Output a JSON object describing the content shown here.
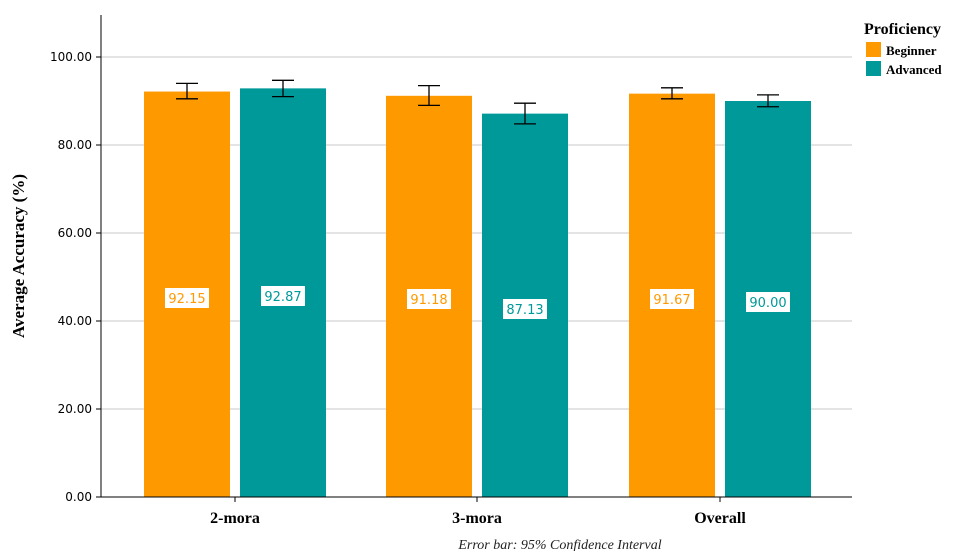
{
  "chart_data": {
    "type": "bar",
    "categories": [
      "2-mora",
      "3-mora",
      "Overall"
    ],
    "ylabel": "Average Accuracy (%)",
    "ylim": [
      0,
      100
    ],
    "yticks": [
      "0.00",
      "20.00",
      "40.00",
      "60.00",
      "80.00",
      "100.00"
    ],
    "ytick_values": [
      0,
      20,
      40,
      60,
      80,
      100
    ],
    "legend_title": "Proficiency",
    "legend_position": "top-right",
    "grid": true,
    "footnote": "Error bar: 95% Confidence Interval",
    "series": [
      {
        "name": "Beginner",
        "color": "#FF9900",
        "values": [
          92.15,
          91.18,
          91.67
        ],
        "labels": [
          "92.15",
          "91.18",
          "91.67"
        ],
        "ci_low": [
          90.5,
          89.0,
          90.5
        ],
        "ci_high": [
          94.0,
          93.5,
          93.0
        ]
      },
      {
        "name": "Advanced",
        "color": "#009999",
        "values": [
          92.87,
          87.13,
          90.0
        ],
        "labels": [
          "92.87",
          "87.13",
          "90.00"
        ],
        "ci_low": [
          91.0,
          84.8,
          88.7
        ],
        "ci_high": [
          94.7,
          89.5,
          91.4
        ]
      }
    ]
  }
}
